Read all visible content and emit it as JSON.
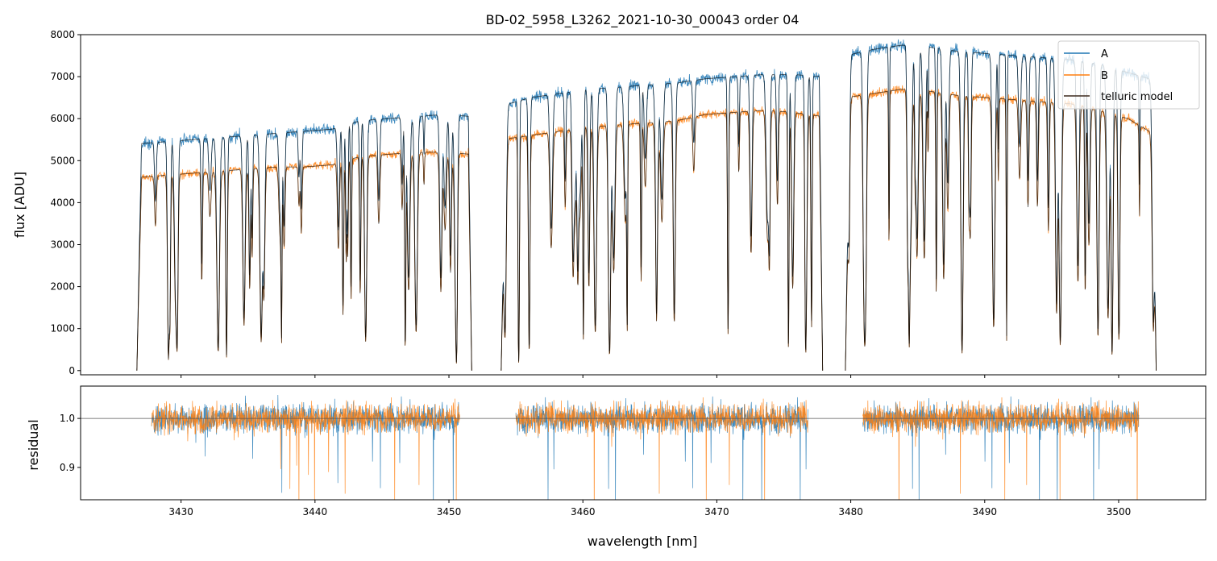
{
  "chart_data": [
    {
      "type": "line",
      "title": "BD-02_5958_L3262_2021-10-30_00043  order 04",
      "xlabel": "",
      "ylabel": "flux [ADU]",
      "xlim": [
        3422.5,
        3506.5
      ],
      "ylim": [
        -100,
        8000
      ],
      "xticks": [
        3430,
        3440,
        3450,
        3460,
        3470,
        3480,
        3490,
        3500
      ],
      "yticks": [
        0,
        1000,
        2000,
        3000,
        4000,
        5000,
        6000,
        7000,
        8000
      ],
      "ytick_labels": [
        "0",
        "1000",
        "2000",
        "3000",
        "4000",
        "5000",
        "6000",
        "7000",
        "8000"
      ],
      "legend": {
        "position": "top-right",
        "entries": [
          "A",
          "B",
          "telluric model"
        ]
      },
      "segments": [
        {
          "range": [
            3426.7,
            3451.7
          ],
          "continuum_A": [
            5400,
            5450,
            5500,
            5550,
            5600,
            5650,
            5700,
            5750,
            5950,
            6000,
            6050,
            6100,
            6050
          ],
          "continuum_B": [
            4600,
            4650,
            4700,
            4750,
            4800,
            4850,
            4850,
            4900,
            5100,
            5150,
            5200,
            5200,
            5150
          ]
        },
        {
          "range": [
            3453.9,
            3477.9
          ],
          "continuum_A": [
            6300,
            6500,
            6600,
            6700,
            6750,
            6800,
            6850,
            6950,
            7000,
            7050,
            7050,
            7000
          ],
          "continuum_B": [
            5500,
            5600,
            5700,
            5800,
            5850,
            5900,
            5950,
            6100,
            6150,
            6200,
            6150,
            6050
          ]
        },
        {
          "range": [
            3479.6,
            3502.8
          ],
          "continuum_A": [
            7500,
            7650,
            7750,
            7700,
            7600,
            7550,
            7500,
            7450,
            7400,
            7300,
            7100,
            6900
          ],
          "continuum_B": [
            6500,
            6600,
            6700,
            6650,
            6550,
            6500,
            6450,
            6400,
            6350,
            6200,
            6000,
            5600
          ]
        }
      ],
      "series": [
        {
          "name": "A",
          "color": "#1f77b4"
        },
        {
          "name": "B",
          "color": "#ff7f0e"
        },
        {
          "name": "telluric model",
          "color": "#000000"
        }
      ]
    },
    {
      "type": "line",
      "title": "",
      "xlabel": "wavelength [nm]",
      "ylabel": "residual",
      "xlim": [
        3422.5,
        3506.5
      ],
      "ylim": [
        0.834,
        1.066
      ],
      "xticks": [
        3430,
        3440,
        3450,
        3460,
        3470,
        3480,
        3490,
        3500
      ],
      "xtick_labels": [
        "3430",
        "3440",
        "3450",
        "3460",
        "3470",
        "3480",
        "3490",
        "3500"
      ],
      "yticks": [
        0.9,
        1.0
      ],
      "ytick_labels": [
        "0.9",
        "1.0"
      ],
      "reference_line": 1.0,
      "segments": [
        {
          "range": [
            3427.8,
            3450.8
          ]
        },
        {
          "range": [
            3455.0,
            3476.8
          ]
        },
        {
          "range": [
            3480.9,
            3501.5
          ]
        }
      ],
      "series": [
        {
          "name": "A",
          "color": "#1f77b4"
        },
        {
          "name": "B",
          "color": "#ff7f0e"
        }
      ]
    }
  ]
}
